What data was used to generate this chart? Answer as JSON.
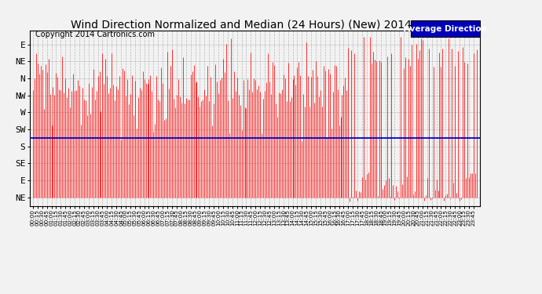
{
  "title": "Wind Direction Normalized and Median (24 Hours) (New) 20140515",
  "copyright": "Copyright 2014 Cartronics.com",
  "legend_label": "Average Direction",
  "legend_bg": "#0000bb",
  "legend_text_color": "#ffffff",
  "y_ticklabels_top_to_bottom": [
    "E",
    "NE",
    "N",
    "NW",
    "W",
    "SW",
    "S",
    "SE",
    "E",
    "NE"
  ],
  "avg_line_y": 3.5,
  "background_color": "#f2f2f2",
  "grid_color": "#aaaaaa",
  "line_color": "#ff0000",
  "avg_line_color": "#0000cc",
  "title_fontsize": 10,
  "copyright_fontsize": 7,
  "figure_width": 6.9,
  "figure_height": 3.75,
  "dpi": 100
}
